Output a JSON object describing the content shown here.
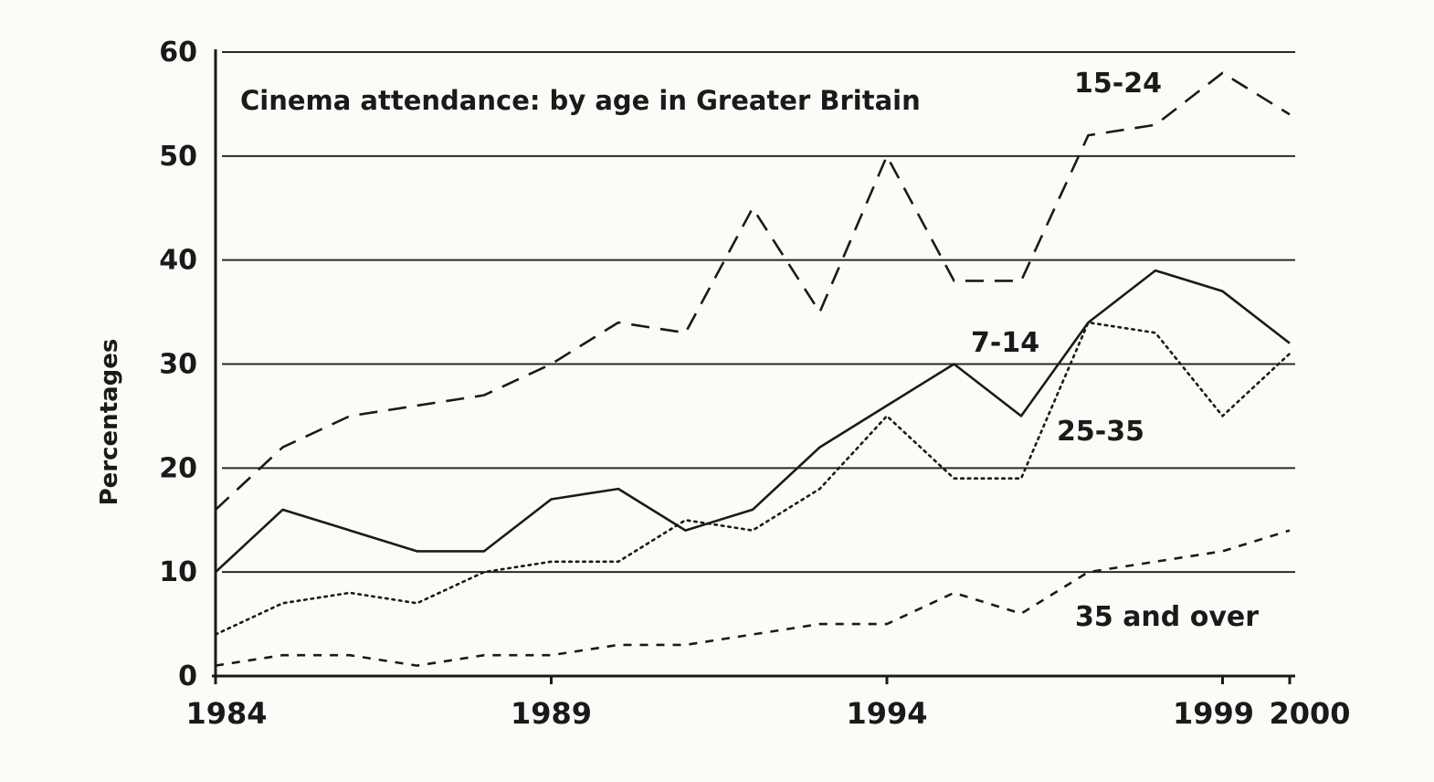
{
  "chart_data": {
    "type": "line",
    "title": "Cinema attendance: by age in Greater Britain",
    "ylabel": "Percentages",
    "xlabel": "",
    "xlim": [
      1984,
      2000
    ],
    "ylim": [
      0,
      60
    ],
    "x_ticks": [
      "1984",
      "1989",
      "1994",
      "1999",
      "2000"
    ],
    "y_ticks": [
      "0",
      "10",
      "20",
      "30",
      "40",
      "50",
      "60"
    ],
    "grid": "horizontal",
    "x": [
      1984,
      1985,
      1986,
      1987,
      1988,
      1989,
      1990,
      1991,
      1992,
      1993,
      1994,
      1995,
      1996,
      1997,
      1998,
      1999,
      2000
    ],
    "series": [
      {
        "name": "15-24",
        "style": "dashed",
        "values": [
          16,
          22,
          25,
          26,
          27,
          30,
          34,
          33,
          45,
          35,
          50,
          38,
          38,
          52,
          53,
          58,
          54
        ]
      },
      {
        "name": "7-14",
        "style": "solid",
        "values": [
          10,
          16,
          14,
          12,
          12,
          17,
          18,
          14,
          16,
          22,
          26,
          30,
          25,
          34,
          39,
          37,
          32
        ]
      },
      {
        "name": "25-35",
        "style": "dotted",
        "values": [
          4,
          7,
          8,
          7,
          10,
          11,
          11,
          15,
          14,
          18,
          25,
          19,
          19,
          34,
          33,
          25,
          31
        ]
      },
      {
        "name": "35 and over",
        "style": "short-dashed",
        "values": [
          1,
          2,
          2,
          1,
          2,
          2,
          3,
          3,
          4,
          5,
          5,
          8,
          6,
          10,
          11,
          12,
          14
        ]
      }
    ]
  }
}
